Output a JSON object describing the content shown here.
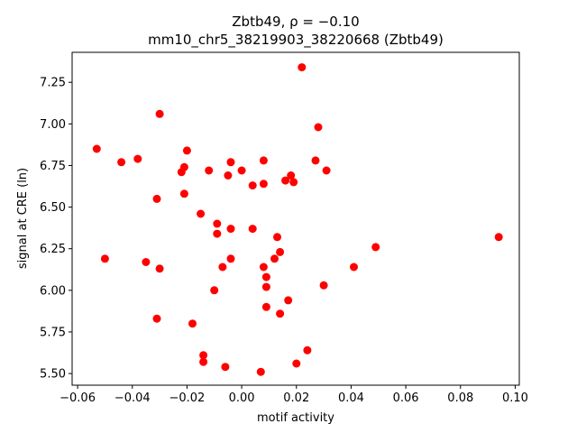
{
  "chart_data": {
    "type": "scatter",
    "title_line1": "Zbtb49, ρ = −0.10",
    "title_line2": "mm10_chr5_38219903_38220668 (Zbtb49)",
    "xlabel": "motif activity",
    "ylabel": "signal at CRE (ln)",
    "xlim": [
      -0.062,
      0.1015
    ],
    "ylim": [
      5.43,
      7.43
    ],
    "x_ticks": [
      -0.06,
      -0.04,
      -0.02,
      0.0,
      0.02,
      0.04,
      0.06,
      0.08,
      0.1
    ],
    "x_tick_labels": [
      "−0.06",
      "−0.04",
      "−0.02",
      "0.00",
      "0.02",
      "0.04",
      "0.06",
      "0.08",
      "0.10"
    ],
    "y_ticks": [
      5.5,
      5.75,
      6.0,
      6.25,
      6.5,
      6.75,
      7.0,
      7.25
    ],
    "y_tick_labels": [
      "5.50",
      "5.75",
      "6.00",
      "6.25",
      "6.50",
      "6.75",
      "7.00",
      "7.25"
    ],
    "grid": false,
    "marker_color": "#ff0000",
    "points": [
      {
        "x": 0.022,
        "y": 7.34
      },
      {
        "x": -0.03,
        "y": 7.06
      },
      {
        "x": 0.028,
        "y": 6.98
      },
      {
        "x": -0.053,
        "y": 6.85
      },
      {
        "x": -0.02,
        "y": 6.84
      },
      {
        "x": -0.044,
        "y": 6.77
      },
      {
        "x": -0.038,
        "y": 6.79
      },
      {
        "x": 0.008,
        "y": 6.78
      },
      {
        "x": 0.027,
        "y": 6.78
      },
      {
        "x": -0.004,
        "y": 6.77
      },
      {
        "x": -0.021,
        "y": 6.74
      },
      {
        "x": -0.022,
        "y": 6.71
      },
      {
        "x": -0.012,
        "y": 6.72
      },
      {
        "x": 0.0,
        "y": 6.72
      },
      {
        "x": 0.031,
        "y": 6.72
      },
      {
        "x": -0.005,
        "y": 6.69
      },
      {
        "x": 0.018,
        "y": 6.69
      },
      {
        "x": 0.016,
        "y": 6.66
      },
      {
        "x": 0.019,
        "y": 6.65
      },
      {
        "x": 0.008,
        "y": 6.64
      },
      {
        "x": 0.004,
        "y": 6.63
      },
      {
        "x": -0.021,
        "y": 6.58
      },
      {
        "x": -0.031,
        "y": 6.55
      },
      {
        "x": -0.015,
        "y": 6.46
      },
      {
        "x": -0.009,
        "y": 6.4
      },
      {
        "x": -0.004,
        "y": 6.37
      },
      {
        "x": 0.004,
        "y": 6.37
      },
      {
        "x": -0.009,
        "y": 6.34
      },
      {
        "x": 0.013,
        "y": 6.32
      },
      {
        "x": 0.094,
        "y": 6.32
      },
      {
        "x": 0.049,
        "y": 6.26
      },
      {
        "x": 0.014,
        "y": 6.23
      },
      {
        "x": -0.05,
        "y": 6.19
      },
      {
        "x": -0.004,
        "y": 6.19
      },
      {
        "x": 0.012,
        "y": 6.19
      },
      {
        "x": -0.035,
        "y": 6.17
      },
      {
        "x": 0.041,
        "y": 6.14
      },
      {
        "x": -0.03,
        "y": 6.13
      },
      {
        "x": -0.007,
        "y": 6.14
      },
      {
        "x": 0.008,
        "y": 6.14
      },
      {
        "x": 0.009,
        "y": 6.08
      },
      {
        "x": 0.03,
        "y": 6.03
      },
      {
        "x": 0.009,
        "y": 6.02
      },
      {
        "x": -0.01,
        "y": 6.0
      },
      {
        "x": 0.017,
        "y": 5.94
      },
      {
        "x": 0.009,
        "y": 5.9
      },
      {
        "x": 0.014,
        "y": 5.86
      },
      {
        "x": -0.031,
        "y": 5.83
      },
      {
        "x": -0.018,
        "y": 5.8
      },
      {
        "x": 0.024,
        "y": 5.64
      },
      {
        "x": -0.014,
        "y": 5.61
      },
      {
        "x": -0.014,
        "y": 5.57
      },
      {
        "x": 0.02,
        "y": 5.56
      },
      {
        "x": -0.006,
        "y": 5.54
      },
      {
        "x": 0.007,
        "y": 5.51
      }
    ]
  }
}
